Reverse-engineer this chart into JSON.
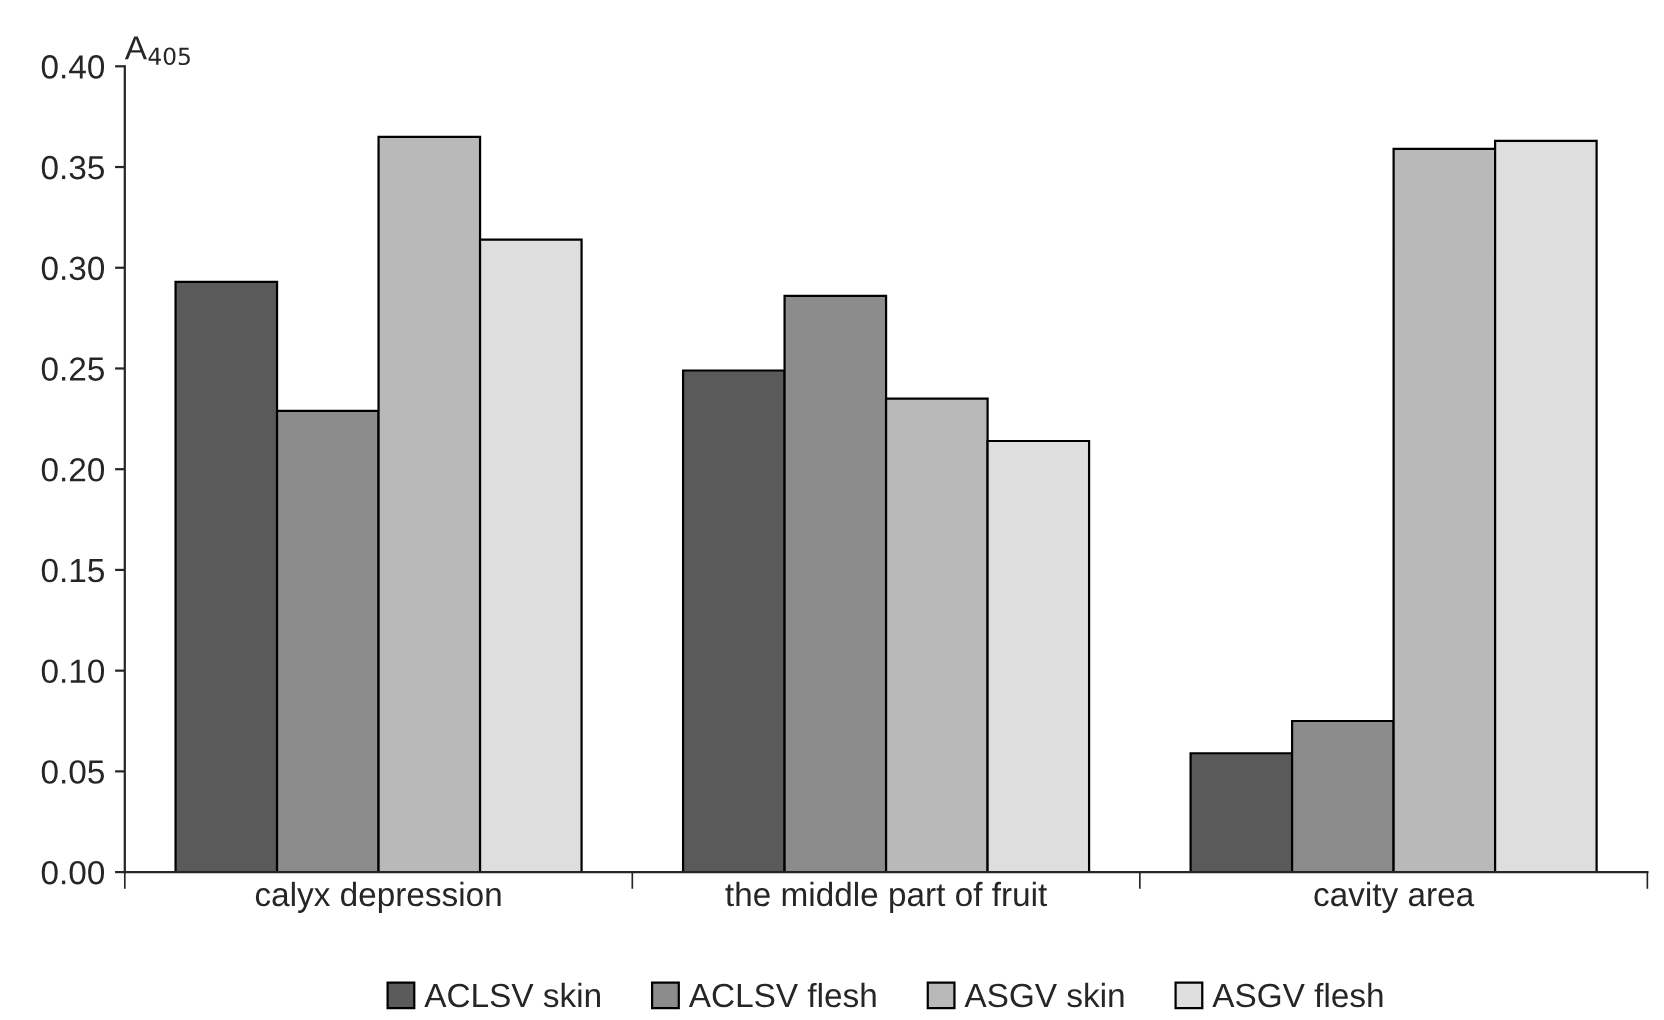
{
  "chart_data": {
    "type": "bar",
    "ylabel": "A$_{405}$",
    "categories": [
      "calyx depression",
      "the middle part of fruit",
      "cavity area"
    ],
    "series": [
      {
        "name": "ACLSV skin",
        "color": "#5a5a5a",
        "values": [
          0.293,
          0.249,
          0.059
        ]
      },
      {
        "name": "ACLSV flesh",
        "color": "#8c8c8c",
        "values": [
          0.229,
          0.286,
          0.075
        ]
      },
      {
        "name": "ASGV skin",
        "color": "#b9b9b9",
        "values": [
          0.365,
          0.235,
          0.359
        ]
      },
      {
        "name": "ASGV flesh",
        "color": "#dedede",
        "values": [
          0.314,
          0.214,
          0.363
        ]
      }
    ],
    "ylim": [
      0,
      0.4
    ],
    "yticks": [
      {
        "value": 0,
        "label": "0.00"
      },
      {
        "value": 0.05,
        "label": "0.05"
      },
      {
        "value": 0.1,
        "label": "0.10"
      },
      {
        "value": 0.15,
        "label": "0.15"
      },
      {
        "value": 0.2,
        "label": "0.20"
      },
      {
        "value": 0.25,
        "label": "0.25"
      },
      {
        "value": 0.3,
        "label": "0.30"
      },
      {
        "value": 0.35,
        "label": "0.35"
      },
      {
        "value": 0.4,
        "label": "0.40"
      }
    ],
    "grid": false,
    "legend": "bottom"
  }
}
